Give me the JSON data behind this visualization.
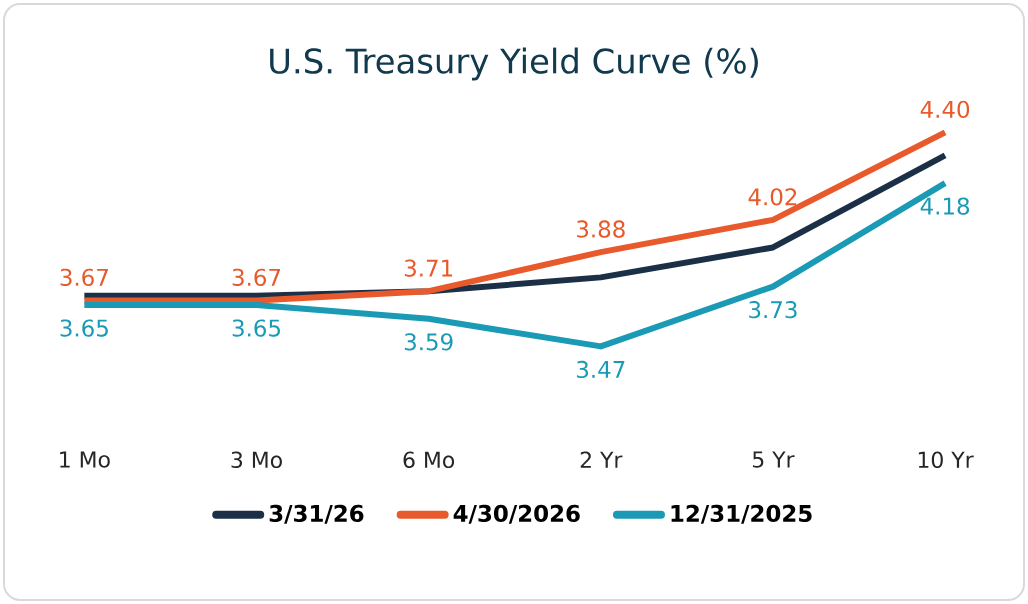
{
  "chart_data": {
    "type": "line",
    "title": "U.S. Treasury Yield Curve (%)",
    "categories": [
      "1 Mo",
      "3 Mo",
      "6 Mo",
      "2 Yr",
      "5 Yr",
      "10 Yr"
    ],
    "series": [
      {
        "name": "3/31/26",
        "color": "#1b3047",
        "values": [
          3.69,
          3.69,
          3.71,
          3.77,
          3.9,
          4.3
        ]
      },
      {
        "name": "4/30/2026",
        "color": "#e8592b",
        "values": [
          3.67,
          3.67,
          3.71,
          3.88,
          4.02,
          4.4
        ],
        "value_labels": [
          "3.67",
          "3.67",
          "3.71",
          "3.88",
          "4.02",
          "4.40"
        ]
      },
      {
        "name": "12/31/2025",
        "color": "#1a9ab5",
        "values": [
          3.65,
          3.65,
          3.59,
          3.47,
          3.73,
          4.18
        ],
        "value_labels": [
          "3.65",
          "3.65",
          "3.59",
          "3.47",
          "3.73",
          "4.18"
        ]
      }
    ],
    "tick_labels": "x",
    "legend": "bottom",
    "grid": false,
    "marker": "none",
    "line_style": "solid"
  }
}
